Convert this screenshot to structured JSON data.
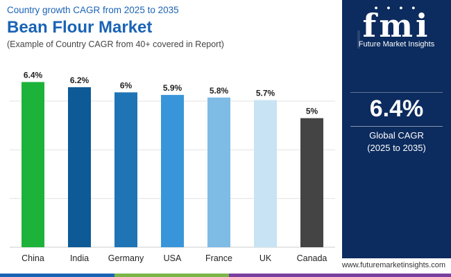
{
  "header": {
    "subtitle": "Country growth CAGR from 2025 to 2035",
    "title": "Bean Flour Market",
    "note": "(Example of Country CAGR from 40+ covered in Report)"
  },
  "brand": {
    "logo": "fmi",
    "name": "Future Market Insights",
    "url": "www.futuremarketinsights.com",
    "panel_color": "#0c2b5e"
  },
  "summary": {
    "value": "6.4%",
    "label": "Global CAGR",
    "period": "(2025 to 2035)"
  },
  "chart_data": {
    "type": "bar",
    "title": "Bean Flour Market",
    "categories": [
      "China",
      "India",
      "Germany",
      "USA",
      "France",
      "UK",
      "Canada"
    ],
    "values": [
      6.4,
      6.2,
      6.0,
      5.9,
      5.8,
      5.7,
      5.0
    ],
    "labels": [
      "6.4%",
      "6.2%",
      "6%",
      "5.9%",
      "5.8%",
      "5.7%",
      "5%"
    ],
    "colors": [
      "#1db33a",
      "#0d5a96",
      "#1f74b6",
      "#3995d9",
      "#7ebbe5",
      "#c7e3f4",
      "#444444"
    ],
    "ylim": [
      0,
      7.7
    ],
    "grid": true,
    "xlabel": "",
    "ylabel": ""
  },
  "footer_colors": [
    "#1a63b5",
    "#7ab648",
    "#7b3fa0"
  ]
}
